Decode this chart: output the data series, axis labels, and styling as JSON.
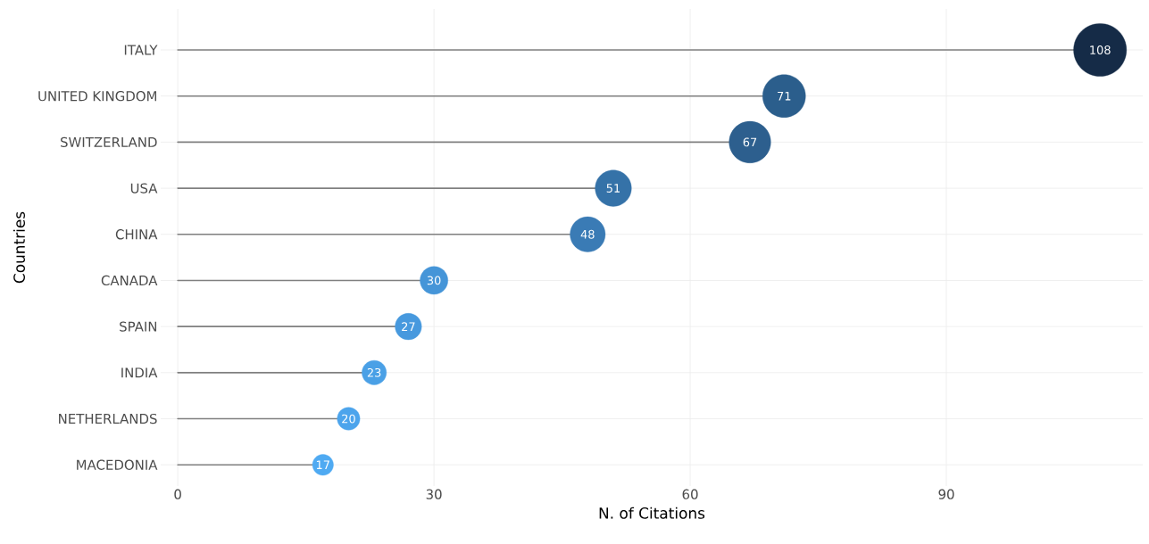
{
  "chart_data": {
    "type": "lollipop",
    "orientation": "horizontal",
    "xlabel": "N. of Citations",
    "ylabel": "Countries",
    "categories": [
      "ITALY",
      "UNITED KINGDOM",
      "SWITZERLAND",
      "USA",
      "CHINA",
      "CANADA",
      "SPAIN",
      "INDIA",
      "NETHERLANDS",
      "MACEDONIA"
    ],
    "values": [
      108,
      71,
      67,
      51,
      48,
      30,
      27,
      23,
      20,
      17
    ],
    "colors": [
      "#152b47",
      "#2b5e8c",
      "#2d5f8e",
      "#3572a8",
      "#3a7bb5",
      "#4595d8",
      "#4799de",
      "#4aa0e6",
      "#4ca4ec",
      "#4faaf2"
    ],
    "sizes": [
      1,
      0.657,
      0.62,
      0.472,
      0.444,
      0.278,
      0.25,
      0.213,
      0.185,
      0.157
    ],
    "data_labels": true,
    "xlim": [
      -2,
      113
    ],
    "xticks": [
      0,
      30,
      60,
      90
    ],
    "grid": true
  }
}
